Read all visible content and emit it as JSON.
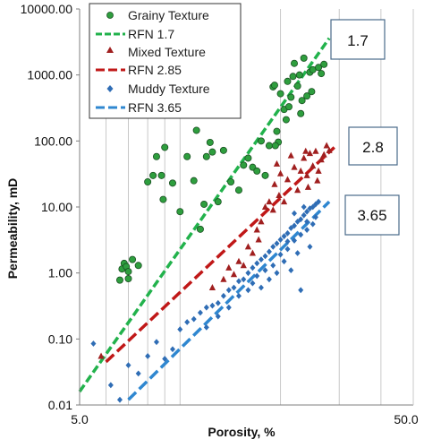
{
  "chart_data": {
    "type": "scatter",
    "xlabel": "Porosity, %",
    "ylabel": "Permeability, mD",
    "x_scale": "log",
    "y_scale": "log",
    "xlim": [
      5,
      50
    ],
    "ylim": [
      0.01,
      10000
    ],
    "x_ticks": [
      "5.0",
      "50.0"
    ],
    "y_ticks": [
      "0.01",
      "0.10",
      "1.00",
      "10.00",
      "100.00",
      "1000.00",
      "10000.00"
    ],
    "grid": "vertical",
    "legend_position": "top-left",
    "series": [
      {
        "name": "Grainy Texture",
        "marker": "circle",
        "color": "#2e9e3e",
        "points": [
          [
            6.6,
            0.78
          ],
          [
            6.7,
            1.15
          ],
          [
            6.8,
            1.4
          ],
          [
            6.9,
            1.25
          ],
          [
            7.0,
            1.05
          ],
          [
            7.0,
            0.82
          ],
          [
            7.2,
            1.6
          ],
          [
            7.5,
            1.3
          ],
          [
            8.0,
            24
          ],
          [
            8.3,
            30
          ],
          [
            8.5,
            58
          ],
          [
            8.8,
            30
          ],
          [
            8.9,
            13
          ],
          [
            9.0,
            80
          ],
          [
            9.5,
            23
          ],
          [
            10.0,
            8.5
          ],
          [
            10.5,
            58
          ],
          [
            11.0,
            25
          ],
          [
            11.2,
            145
          ],
          [
            11.5,
            4.6
          ],
          [
            11.8,
            11
          ],
          [
            12.0,
            58
          ],
          [
            12.3,
            95
          ],
          [
            12.5,
            68
          ],
          [
            13.0,
            12
          ],
          [
            13.5,
            72
          ],
          [
            14.2,
            24
          ],
          [
            15.0,
            18
          ],
          [
            15.5,
            43
          ],
          [
            16.0,
            55
          ],
          [
            16.5,
            40
          ],
          [
            17.0,
            35
          ],
          [
            17.5,
            100
          ],
          [
            18.0,
            30
          ],
          [
            18.5,
            85
          ],
          [
            19.0,
            660
          ],
          [
            19.2,
            700
          ],
          [
            19.5,
            140
          ],
          [
            20.0,
            520
          ],
          [
            20.5,
            300
          ],
          [
            21.0,
            800
          ],
          [
            21.5,
            460
          ],
          [
            21.8,
            950
          ],
          [
            22.0,
            1500
          ],
          [
            22.5,
            680
          ],
          [
            23.0,
            260
          ],
          [
            23.5,
            1800
          ],
          [
            24.0,
            480
          ],
          [
            24.5,
            1100
          ],
          [
            25.0,
            1200
          ],
          [
            26.0,
            1300
          ],
          [
            26.5,
            1050
          ],
          [
            27.0,
            1450
          ],
          [
            19.7,
            96
          ],
          [
            21.2,
            330
          ],
          [
            23.2,
            410
          ],
          [
            24.8,
            560
          ],
          [
            22.8,
            1000
          ],
          [
            20.8,
            210
          ],
          [
            19.3,
            85
          ]
        ]
      },
      {
        "name": "Mixed Texture",
        "marker": "triangle",
        "color": "#a01f1f",
        "points": [
          [
            5.8,
            0.055
          ],
          [
            12.5,
            0.6
          ],
          [
            13.5,
            0.8
          ],
          [
            14.0,
            1.2
          ],
          [
            14.5,
            0.95
          ],
          [
            15.0,
            1.5
          ],
          [
            15.5,
            1.3
          ],
          [
            16.0,
            2.5
          ],
          [
            16.5,
            2.0
          ],
          [
            17.0,
            4.5
          ],
          [
            17.2,
            3.2
          ],
          [
            17.5,
            6.0
          ],
          [
            18.0,
            10
          ],
          [
            18.5,
            12
          ],
          [
            19.0,
            9
          ],
          [
            19.2,
            22
          ],
          [
            19.5,
            45
          ],
          [
            19.8,
            15
          ],
          [
            20.0,
            32
          ],
          [
            20.5,
            12
          ],
          [
            21.0,
            26
          ],
          [
            21.5,
            60
          ],
          [
            22.0,
            40
          ],
          [
            22.5,
            18
          ],
          [
            23.0,
            35
          ],
          [
            23.5,
            55
          ],
          [
            24.0,
            30
          ],
          [
            24.2,
            20
          ],
          [
            24.5,
            65
          ],
          [
            25.0,
            42
          ],
          [
            25.5,
            70
          ],
          [
            26.0,
            35
          ],
          [
            26.5,
            52
          ],
          [
            27.0,
            62
          ],
          [
            27.5,
            85
          ],
          [
            28.0,
            72
          ],
          [
            25.8,
            25
          ],
          [
            23.8,
            70
          ]
        ]
      },
      {
        "name": "Muddy Texture",
        "marker": "diamond",
        "color": "#2f6db5",
        "points": [
          [
            5.5,
            0.085
          ],
          [
            6.2,
            0.02
          ],
          [
            6.6,
            0.012
          ],
          [
            7.0,
            0.04
          ],
          [
            7.5,
            0.03
          ],
          [
            8.0,
            0.055
          ],
          [
            8.5,
            0.09
          ],
          [
            9.0,
            0.05
          ],
          [
            9.5,
            0.07
          ],
          [
            10.0,
            0.14
          ],
          [
            10.5,
            0.18
          ],
          [
            11.0,
            0.2
          ],
          [
            11.5,
            0.25
          ],
          [
            12.0,
            0.3
          ],
          [
            12.5,
            0.32
          ],
          [
            13.0,
            0.35
          ],
          [
            13.5,
            0.45
          ],
          [
            14.0,
            0.55
          ],
          [
            14.5,
            0.6
          ],
          [
            15.0,
            0.75
          ],
          [
            15.5,
            0.8
          ],
          [
            16.0,
            1.0
          ],
          [
            16.5,
            1.2
          ],
          [
            17.0,
            1.4
          ],
          [
            17.5,
            1.6
          ],
          [
            18.0,
            1.8
          ],
          [
            18.5,
            2.1
          ],
          [
            19.0,
            2.5
          ],
          [
            19.5,
            2.8
          ],
          [
            20.0,
            3.2
          ],
          [
            20.5,
            3.6
          ],
          [
            21.0,
            4.0
          ],
          [
            21.5,
            4.8
          ],
          [
            22.0,
            5.2
          ],
          [
            22.5,
            6.0
          ],
          [
            23.0,
            6.5
          ],
          [
            23.5,
            7.5
          ],
          [
            24.0,
            8.5
          ],
          [
            24.5,
            9.5
          ],
          [
            25.0,
            10
          ],
          [
            25.5,
            11
          ],
          [
            26.0,
            12
          ],
          [
            14.0,
            0.3
          ],
          [
            15.0,
            0.45
          ],
          [
            16.0,
            0.55
          ],
          [
            17.0,
            0.9
          ],
          [
            18.0,
            1.1
          ],
          [
            19.0,
            1.3
          ],
          [
            20.0,
            1.9
          ],
          [
            21.0,
            2.3
          ],
          [
            22.0,
            3.1
          ],
          [
            23.0,
            3.8
          ],
          [
            24.0,
            4.5
          ],
          [
            25.0,
            5.5
          ],
          [
            21.5,
            1.1
          ],
          [
            23.0,
            0.55
          ],
          [
            24.5,
            2.5
          ],
          [
            13.0,
            0.22
          ],
          [
            12.0,
            0.15
          ],
          [
            17.5,
            0.6
          ],
          [
            18.5,
            0.8
          ],
          [
            20.5,
            1.5
          ],
          [
            22.5,
            2.0
          ],
          [
            19.5,
            1.0
          ],
          [
            16.5,
            0.7
          ],
          [
            24.0,
            6.0
          ],
          [
            22.0,
            8.0
          ],
          [
            23.5,
            10
          ],
          [
            25.5,
            7
          ],
          [
            21.0,
            3.0
          ]
        ]
      }
    ],
    "lines": [
      {
        "name": "RFN 1.7",
        "label": "1.7",
        "color": "#22b24c",
        "x": [
          5,
          28
        ],
        "y": [
          0.016,
          3600
        ]
      },
      {
        "name": "RFN 2.85",
        "label": "2.8",
        "color": "#c01818",
        "x": [
          6,
          29
        ],
        "y": [
          0.045,
          80
        ]
      },
      {
        "name": "RFN 3.65",
        "label": "3.65",
        "color": "#2f87d0",
        "x": [
          7,
          28
        ],
        "y": [
          0.012,
          12
        ]
      }
    ]
  }
}
